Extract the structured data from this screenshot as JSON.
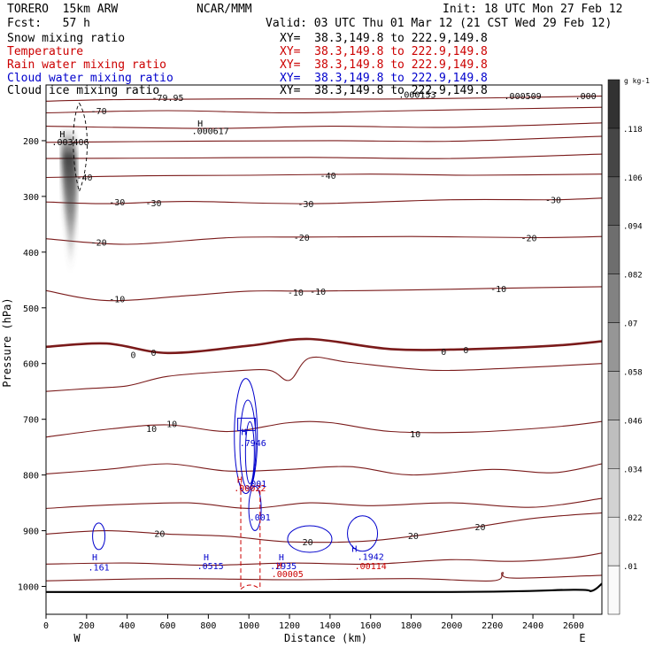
{
  "header": {
    "model": "TORERO  15km ARW",
    "center": "NCAR/MMM",
    "init": "Init: 18 UTC Mon 27 Feb 12",
    "fcst": "Fcst:   57 h",
    "valid": "Valid: 03 UTC Thu 01 Mar 12 (21 CST Wed 29 Feb 12)"
  },
  "legend": [
    {
      "field": "Snow mixing ratio",
      "xy": "XY=  38.3,149.8 to 222.9,149.8",
      "color": "#000000"
    },
    {
      "field": "Temperature",
      "xy": "XY=  38.3,149.8 to 222.9,149.8",
      "color": "#cc0000"
    },
    {
      "field": "Rain water mixing ratio",
      "xy": "XY=  38.3,149.8 to 222.9,149.8",
      "color": "#cc0000"
    },
    {
      "field": "Cloud water mixing ratio",
      "xy": "XY=  38.3,149.8 to 222.9,149.8",
      "color": "#0000cc"
    },
    {
      "field": "Cloud ice mixing ratio",
      "xy": "XY=  38.3,149.8 to 222.9,149.8",
      "color": "#000000"
    }
  ],
  "chart_data": {
    "type": "contour-cross-section",
    "xlabel": "Distance (km)",
    "ylabel": "Pressure (hPa)",
    "xlim": [
      0,
      2740
    ],
    "ylim": [
      1050,
      100
    ],
    "x_ticks": [
      0,
      200,
      400,
      600,
      800,
      1000,
      1200,
      1400,
      1600,
      1800,
      2000,
      2200,
      2400,
      2600
    ],
    "y_ticks": [
      200,
      300,
      400,
      500,
      600,
      700,
      800,
      900,
      1000
    ],
    "x_end_labels": {
      "left": "W",
      "right": "E"
    },
    "colorbar": {
      "units": "g kg-1",
      "labels": [
        ".01",
        ".022",
        ".034",
        ".046",
        ".058",
        ".07",
        ".082",
        ".094",
        ".106",
        ".118"
      ]
    },
    "temperature_labels": [
      {
        "text": "-79.95",
        "x": 600,
        "p": 122
      },
      {
        "text": "-70",
        "x": 260,
        "p": 146
      },
      {
        "text": "-40",
        "x": 190,
        "p": 265
      },
      {
        "text": "-40",
        "x": 1390,
        "p": 262
      },
      {
        "text": "-30",
        "x": 350,
        "p": 310
      },
      {
        "text": "-30",
        "x": 530,
        "p": 311
      },
      {
        "text": "-30",
        "x": 1280,
        "p": 313
      },
      {
        "text": "-30",
        "x": 2500,
        "p": 306
      },
      {
        "text": "-20",
        "x": 260,
        "p": 382
      },
      {
        "text": "-20",
        "x": 1260,
        "p": 373
      },
      {
        "text": "-20",
        "x": 2380,
        "p": 374
      },
      {
        "text": "-10",
        "x": 350,
        "p": 484
      },
      {
        "text": "-10",
        "x": 1230,
        "p": 472
      },
      {
        "text": "-10",
        "x": 1340,
        "p": 470
      },
      {
        "text": "-10",
        "x": 2230,
        "p": 465
      },
      {
        "text": "0",
        "x": 430,
        "p": 584
      },
      {
        "text": "0",
        "x": 530,
        "p": 580
      },
      {
        "text": "0",
        "x": 1960,
        "p": 578
      },
      {
        "text": "0",
        "x": 2070,
        "p": 575
      },
      {
        "text": "10",
        "x": 520,
        "p": 716
      },
      {
        "text": "10",
        "x": 620,
        "p": 708
      },
      {
        "text": "10",
        "x": 1820,
        "p": 726
      },
      {
        "text": "20",
        "x": 560,
        "p": 905
      },
      {
        "text": "20",
        "x": 1290,
        "p": 920
      },
      {
        "text": "20",
        "x": 1810,
        "p": 909
      },
      {
        "text": "20",
        "x": 2140,
        "p": 893
      }
    ],
    "value_labels": [
      {
        "text": "H",
        "x": 80,
        "p": 187,
        "color": "#000000"
      },
      {
        "text": ".003406",
        "x": 120,
        "p": 202,
        "color": "#000000"
      },
      {
        "text": "H",
        "x": 760,
        "p": 168,
        "color": "#000000"
      },
      {
        "text": ".000617",
        "x": 810,
        "p": 182,
        "color": "#000000"
      },
      {
        "text": ".000153",
        "x": 1830,
        "p": 117,
        "color": "#000000"
      },
      {
        "text": ".000509",
        "x": 2350,
        "p": 119,
        "color": "#000000"
      },
      {
        "text": ".000",
        "x": 2660,
        "p": 119,
        "color": "#000000"
      },
      {
        "text": "H",
        "x": 975,
        "p": 722,
        "color": "#0000cc"
      },
      {
        "text": ".7946",
        "x": 1020,
        "p": 742,
        "color": "#0000cc"
      },
      {
        "text": "H",
        "x": 955,
        "p": 808,
        "color": "#cc0000"
      },
      {
        "text": ".00022",
        "x": 1005,
        "p": 823,
        "color": "#cc0000"
      },
      {
        "text": ".001",
        "x": 1035,
        "p": 815,
        "color": "#0000cc"
      },
      {
        "text": ".001",
        "x": 1055,
        "p": 875,
        "color": "#0000cc"
      },
      {
        "text": "H",
        "x": 240,
        "p": 947,
        "color": "#0000cc"
      },
      {
        "text": ".161",
        "x": 260,
        "p": 965,
        "color": "#0000cc"
      },
      {
        "text": "H",
        "x": 790,
        "p": 947,
        "color": "#0000cc"
      },
      {
        "text": ".0515",
        "x": 810,
        "p": 963,
        "color": "#0000cc"
      },
      {
        "text": "H",
        "x": 1160,
        "p": 947,
        "color": "#0000cc"
      },
      {
        "text": ".2935",
        "x": 1170,
        "p": 963,
        "color": "#0000cc"
      },
      {
        "text": "H",
        "x": 1150,
        "p": 962,
        "color": "#cc0000"
      },
      {
        "text": ".00005",
        "x": 1190,
        "p": 977,
        "color": "#cc0000"
      },
      {
        "text": "H",
        "x": 1520,
        "p": 932,
        "color": "#0000cc"
      },
      {
        "text": ".1942",
        "x": 1600,
        "p": 946,
        "color": "#0000cc"
      },
      {
        "text": ".00114",
        "x": 1600,
        "p": 963,
        "color": "#cc0000"
      }
    ],
    "isotherms": [
      {
        "value": "",
        "pts": [
          [
            0,
            129
          ],
          [
            400,
            126
          ],
          [
            1000,
            125
          ],
          [
            1800,
            125
          ],
          [
            2740,
            120
          ]
        ]
      },
      {
        "value": "-70",
        "pts": [
          [
            0,
            150
          ],
          [
            600,
            146
          ],
          [
            1200,
            150
          ],
          [
            1800,
            146
          ],
          [
            2740,
            140
          ]
        ]
      },
      {
        "value": "",
        "pts": [
          [
            0,
            174
          ],
          [
            800,
            178
          ],
          [
            1400,
            174
          ],
          [
            2000,
            176
          ],
          [
            2740,
            168
          ]
        ]
      },
      {
        "value": "",
        "pts": [
          [
            0,
            203
          ],
          [
            700,
            201
          ],
          [
            1400,
            200
          ],
          [
            2000,
            201
          ],
          [
            2740,
            192
          ]
        ]
      },
      {
        "value": "",
        "pts": [
          [
            0,
            232
          ],
          [
            700,
            231
          ],
          [
            1300,
            230
          ],
          [
            2000,
            232
          ],
          [
            2740,
            224
          ]
        ]
      },
      {
        "value": "-40",
        "pts": [
          [
            0,
            266
          ],
          [
            500,
            263
          ],
          [
            1000,
            262
          ],
          [
            1600,
            260
          ],
          [
            2100,
            262
          ],
          [
            2740,
            260
          ]
        ]
      },
      {
        "value": "-30",
        "pts": [
          [
            0,
            310
          ],
          [
            300,
            313
          ],
          [
            700,
            309
          ],
          [
            1300,
            313
          ],
          [
            2000,
            306
          ],
          [
            2500,
            306
          ],
          [
            2740,
            303
          ]
        ]
      },
      {
        "value": "-20",
        "pts": [
          [
            0,
            376
          ],
          [
            400,
            386
          ],
          [
            900,
            374
          ],
          [
            1300,
            373
          ],
          [
            1800,
            372
          ],
          [
            2400,
            374
          ],
          [
            2740,
            372
          ]
        ]
      },
      {
        "value": "-10",
        "pts": [
          [
            0,
            469
          ],
          [
            300,
            487
          ],
          [
            700,
            478
          ],
          [
            1000,
            470
          ],
          [
            1300,
            470
          ],
          [
            1800,
            468
          ],
          [
            2200,
            465
          ],
          [
            2740,
            462
          ]
        ]
      },
      {
        "value": "0",
        "pts": [
          [
            0,
            570
          ],
          [
            300,
            564
          ],
          [
            600,
            581
          ],
          [
            1000,
            568
          ],
          [
            1300,
            556
          ],
          [
            1700,
            574
          ],
          [
            2100,
            574
          ],
          [
            2500,
            568
          ],
          [
            2740,
            560
          ]
        ],
        "bold": true
      },
      {
        "value": "",
        "pts": [
          [
            0,
            650
          ],
          [
            200,
            645
          ],
          [
            400,
            640
          ],
          [
            600,
            623
          ],
          [
            900,
            614
          ],
          [
            1100,
            612
          ],
          [
            1200,
            630
          ],
          [
            1300,
            590
          ],
          [
            1500,
            598
          ],
          [
            1900,
            612
          ],
          [
            2300,
            608
          ],
          [
            2740,
            600
          ]
        ]
      },
      {
        "value": "10",
        "pts": [
          [
            0,
            732
          ],
          [
            300,
            718
          ],
          [
            600,
            710
          ],
          [
            900,
            722
          ],
          [
            1200,
            706
          ],
          [
            1400,
            706
          ],
          [
            1700,
            722
          ],
          [
            2100,
            723
          ],
          [
            2500,
            714
          ],
          [
            2740,
            704
          ]
        ]
      },
      {
        "value": "",
        "pts": [
          [
            0,
            798
          ],
          [
            300,
            790
          ],
          [
            600,
            780
          ],
          [
            900,
            793
          ],
          [
            1200,
            790
          ],
          [
            1500,
            785
          ],
          [
            1800,
            800
          ],
          [
            2200,
            790
          ],
          [
            2500,
            796
          ],
          [
            2740,
            780
          ]
        ]
      },
      {
        "value": "",
        "pts": [
          [
            0,
            860
          ],
          [
            300,
            854
          ],
          [
            700,
            850
          ],
          [
            1000,
            860
          ],
          [
            1300,
            850
          ],
          [
            1600,
            855
          ],
          [
            2000,
            850
          ],
          [
            2400,
            858
          ],
          [
            2740,
            842
          ]
        ]
      },
      {
        "value": "20",
        "pts": [
          [
            0,
            906
          ],
          [
            300,
            900
          ],
          [
            600,
            906
          ],
          [
            900,
            910
          ],
          [
            1200,
            920
          ],
          [
            1600,
            918
          ],
          [
            2000,
            900
          ],
          [
            2400,
            878
          ],
          [
            2740,
            868
          ]
        ]
      },
      {
        "value": "",
        "pts": [
          [
            0,
            960
          ],
          [
            400,
            958
          ],
          [
            800,
            962
          ],
          [
            1200,
            958
          ],
          [
            1600,
            960
          ],
          [
            2000,
            952
          ],
          [
            2300,
            955
          ],
          [
            2600,
            948
          ],
          [
            2740,
            940
          ]
        ]
      },
      {
        "value": "",
        "pts": [
          [
            0,
            990
          ],
          [
            600,
            986
          ],
          [
            1200,
            988
          ],
          [
            1800,
            986
          ],
          [
            2200,
            990
          ],
          [
            2250,
            975
          ],
          [
            2300,
            985
          ],
          [
            2740,
            980
          ]
        ]
      }
    ],
    "terrain": [
      [
        0,
        1010
      ],
      [
        2000,
        1010
      ],
      [
        2600,
        1006
      ],
      [
        2690,
        1008
      ],
      [
        2740,
        995
      ]
    ],
    "snow_plume": {
      "x": 120,
      "p_top": 180,
      "p_bottom": 440
    }
  }
}
